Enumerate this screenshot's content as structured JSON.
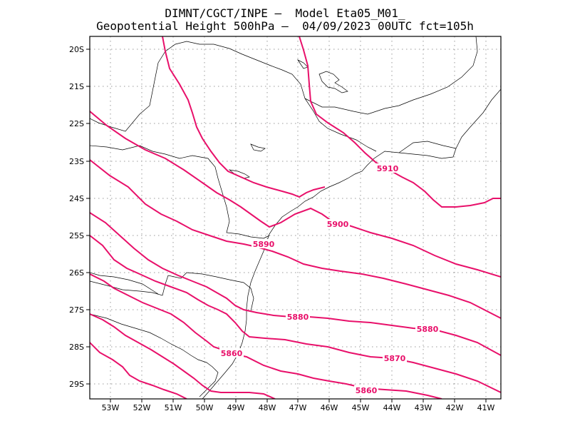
{
  "title": {
    "line1": "DIMNT/CGCT/INPE –  Model Eta05_M01_",
    "line2": "Geopotential Height 500hPa –  04/09/2023 00UTC fct=105h"
  },
  "axes": {
    "lat_labels": [
      "20S",
      "21S",
      "22S",
      "23S",
      "24S",
      "25S",
      "26S",
      "27S",
      "28S",
      "29S"
    ],
    "lon_labels": [
      "53W",
      "52W",
      "51W",
      "50W",
      "49W",
      "48W",
      "47W",
      "46W",
      "45W",
      "44W",
      "43W",
      "42W",
      "41W"
    ]
  },
  "colors": {
    "contour": "#e8106a",
    "coast": "#000000",
    "grid": "#999999"
  },
  "contour_labels": {
    "c5910": "5910",
    "c5900": "5900",
    "c5890": "5890",
    "c5880a": "5880",
    "c5880b": "5880",
    "c5870": "5870",
    "c5860a": "5860",
    "c5860b": "5860"
  }
}
